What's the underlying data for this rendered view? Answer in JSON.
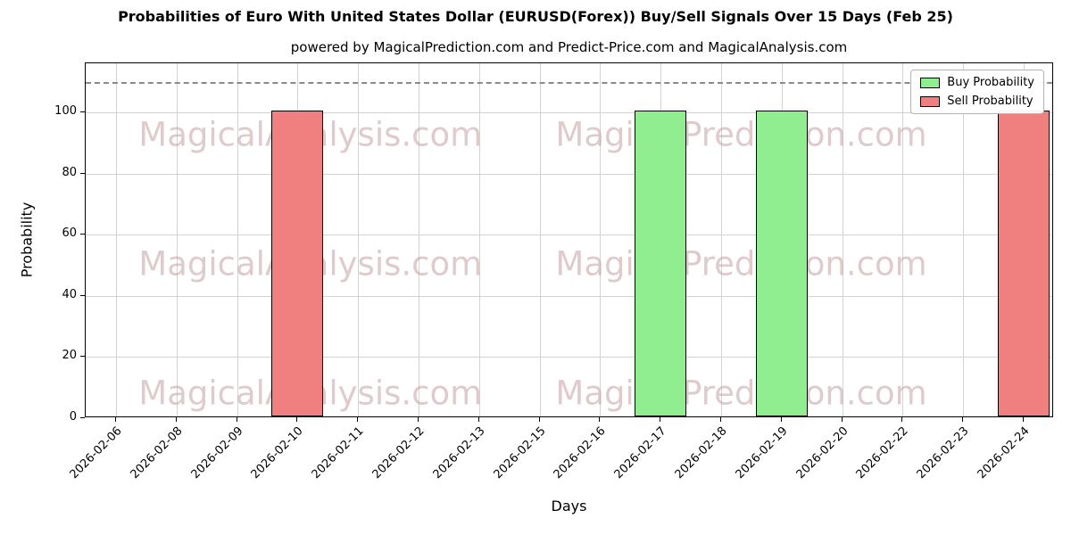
{
  "figure": {
    "title": "Probabilities of Euro With United States Dollar (EURUSD(Forex)) Buy/Sell Signals Over 15 Days (Feb 25)",
    "subtitle": "powered by MagicalPrediction.com and Predict-Price.com and MagicalAnalysis.com"
  },
  "watermarks": {
    "left_text": "MagicalAnalysis.com",
    "right_text": "MagicalPrediction.com"
  },
  "chart_data": {
    "type": "bar",
    "title": "Probabilities of Euro With United States Dollar (EURUSD(Forex)) Buy/Sell Signals Over 15 Days (Feb 25)",
    "subtitle": "powered by MagicalPrediction.com and Predict-Price.com and MagicalAnalysis.com",
    "xlabel": "Days",
    "ylabel": "Probability",
    "categories": [
      "2026-02-06",
      "2026-02-08",
      "2026-02-09",
      "2026-02-10",
      "2026-02-11",
      "2026-02-12",
      "2026-02-13",
      "2026-02-15",
      "2026-02-16",
      "2026-02-17",
      "2026-02-18",
      "2026-02-19",
      "2026-02-20",
      "2026-02-22",
      "2026-02-23",
      "2026-02-24"
    ],
    "series": [
      {
        "name": "Buy Probability",
        "color": "#90ee90",
        "edge_color": "#000000",
        "values": [
          0,
          0,
          0,
          0,
          0,
          0,
          0,
          0,
          0,
          100,
          0,
          100,
          0,
          0,
          0,
          0
        ]
      },
      {
        "name": "Sell Probability",
        "color": "#f08080",
        "edge_color": "#000000",
        "values": [
          0,
          0,
          0,
          100,
          0,
          0,
          0,
          0,
          0,
          0,
          0,
          0,
          0,
          0,
          0,
          100
        ]
      }
    ],
    "yticks": [
      0,
      20,
      40,
      60,
      80,
      100
    ],
    "ylim": [
      0,
      116
    ],
    "threshold_line": {
      "y": 110,
      "style": "dashed",
      "color": "#8a8a8a"
    },
    "grid": true,
    "legend_position": "upper right",
    "bar_edge": "#000000"
  }
}
